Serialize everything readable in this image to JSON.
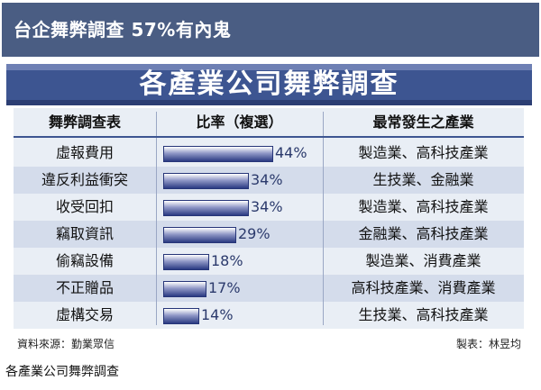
{
  "headline": "台企舞弊調查 57%有內鬼",
  "chart_data": {
    "type": "table",
    "title": "各產業公司舞弊調查",
    "columns": [
      "舞弊調查表",
      "比率（複選）",
      "最常發生之產業"
    ],
    "categories": [
      "虛報費用",
      "違反利益衝突",
      "收受回扣",
      "竊取資訊",
      "偷竊設備",
      "不正贈品",
      "虛構交易"
    ],
    "values": [
      44,
      34,
      34,
      29,
      18,
      17,
      14
    ],
    "value_labels": [
      "44%",
      "34%",
      "34%",
      "29%",
      "18%",
      "17%",
      "14%"
    ],
    "industries": [
      "製造業、高科技產業",
      "生技業、金融業",
      "製造業、高科技產業",
      "金融業、高科技產業",
      "製造業、消費產業",
      "高科技產業、消費產業",
      "生技業、高科技產業"
    ],
    "ylim": [
      0,
      44
    ]
  },
  "source": "資料來源：勤業眾信",
  "maker": "製表：林昱均",
  "caption": "各產業公司舞弊調查",
  "colors": {
    "headline_bg": "#4a5d83",
    "banner_bg": "#3d5591",
    "row_alt": "#d4dceb",
    "bar_dark": "#2a3a82"
  }
}
